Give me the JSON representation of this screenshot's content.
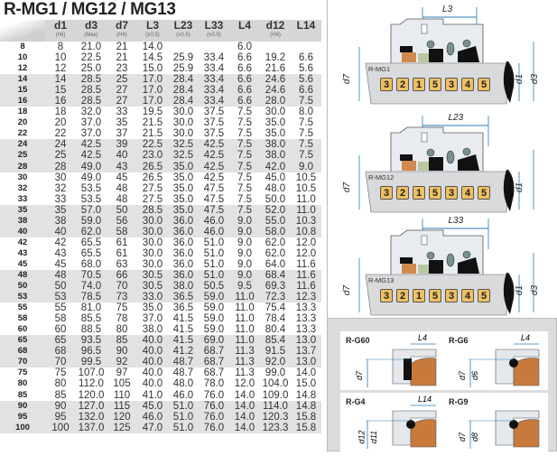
{
  "title": "R-MG1 / MG12 / MG13",
  "columns": [
    {
      "name": "d1",
      "sub": "(h6)"
    },
    {
      "name": "d3",
      "sub": "(Max)"
    },
    {
      "name": "d7",
      "sub": "(H8)"
    },
    {
      "name": "L3",
      "sub": "(±0.5)"
    },
    {
      "name": "L23",
      "sub": "(±0.5)"
    },
    {
      "name": "L33",
      "sub": "(±0.5)"
    },
    {
      "name": "L4",
      "sub": ""
    },
    {
      "name": "d12",
      "sub": "(H8)"
    },
    {
      "name": "L14",
      "sub": ""
    }
  ],
  "rows": [
    [
      "8",
      "8",
      "21.0",
      "21",
      "14.0",
      "",
      "",
      "6.0",
      "",
      ""
    ],
    [
      "10",
      "10",
      "22.5",
      "21",
      "14.5",
      "25.9",
      "33.4",
      "6.6",
      "19.2",
      "6.6"
    ],
    [
      "12",
      "12",
      "25.0",
      "23",
      "15.0",
      "25.9",
      "33.4",
      "6.6",
      "21.6",
      "5.6"
    ],
    [
      "14",
      "14",
      "28.5",
      "25",
      "17.0",
      "28.4",
      "33.4",
      "6.6",
      "24.6",
      "5.6"
    ],
    [
      "15",
      "15",
      "28.5",
      "27",
      "17.0",
      "28.4",
      "33.4",
      "6.6",
      "24.6",
      "6.6"
    ],
    [
      "16",
      "16",
      "28.5",
      "27",
      "17.0",
      "28.4",
      "33.4",
      "6.6",
      "28.0",
      "7.5"
    ],
    [
      "18",
      "18",
      "32.0",
      "33",
      "19.5",
      "30.0",
      "37.5",
      "7.5",
      "30.0",
      "8.0"
    ],
    [
      "20",
      "20",
      "37.0",
      "35",
      "21.5",
      "30.0",
      "37.5",
      "7.5",
      "35.0",
      "7.5"
    ],
    [
      "22",
      "22",
      "37.0",
      "37",
      "21.5",
      "30.0",
      "37.5",
      "7.5",
      "35.0",
      "7.5"
    ],
    [
      "24",
      "24",
      "42.5",
      "39",
      "22.5",
      "32.5",
      "42.5",
      "7.5",
      "38.0",
      "7.5"
    ],
    [
      "25",
      "25",
      "42.5",
      "40",
      "23.0",
      "32.5",
      "42.5",
      "7.5",
      "38.0",
      "7.5"
    ],
    [
      "28",
      "28",
      "49.0",
      "43",
      "26.5",
      "35.0",
      "42.5",
      "7.5",
      "42.0",
      "9.0"
    ],
    [
      "30",
      "30",
      "49.0",
      "45",
      "26.5",
      "35.0",
      "42.5",
      "7.5",
      "45.0",
      "10.5"
    ],
    [
      "32",
      "32",
      "53.5",
      "48",
      "27.5",
      "35.0",
      "47.5",
      "7.5",
      "48.0",
      "10.5"
    ],
    [
      "33",
      "33",
      "53.5",
      "48",
      "27.5",
      "35.0",
      "47.5",
      "7.5",
      "50.0",
      "11.0"
    ],
    [
      "35",
      "35",
      "57.0",
      "50",
      "28.5",
      "35.0",
      "47.5",
      "7.5",
      "52.0",
      "11.0"
    ],
    [
      "38",
      "38",
      "59.0",
      "56",
      "30.0",
      "36.0",
      "46.0",
      "9.0",
      "55.0",
      "10.3"
    ],
    [
      "40",
      "40",
      "62.0",
      "58",
      "30.0",
      "36.0",
      "46.0",
      "9.0",
      "58.0",
      "10.8"
    ],
    [
      "42",
      "42",
      "65.5",
      "61",
      "30.0",
      "36.0",
      "51.0",
      "9.0",
      "62.0",
      "12.0"
    ],
    [
      "43",
      "43",
      "65.5",
      "61",
      "30.0",
      "36.0",
      "51.0",
      "9.0",
      "62.0",
      "12.0"
    ],
    [
      "45",
      "45",
      "68.0",
      "63",
      "30.0",
      "36.0",
      "51.0",
      "9.0",
      "64.0",
      "11.6"
    ],
    [
      "48",
      "48",
      "70.5",
      "66",
      "30.5",
      "36.0",
      "51.0",
      "9.0",
      "68.4",
      "11.6"
    ],
    [
      "50",
      "50",
      "74.0",
      "70",
      "30.5",
      "38.0",
      "50.5",
      "9.5",
      "69.3",
      "11.6"
    ],
    [
      "53",
      "53",
      "78.5",
      "73",
      "33.0",
      "36.5",
      "59.0",
      "11.0",
      "72.3",
      "12.3"
    ],
    [
      "55",
      "55",
      "81.0",
      "75",
      "35.0",
      "36.5",
      "59.0",
      "11.0",
      "75.4",
      "13.3"
    ],
    [
      "58",
      "58",
      "85.5",
      "78",
      "37.0",
      "41.5",
      "59.0",
      "11.0",
      "78.4",
      "13.3"
    ],
    [
      "60",
      "60",
      "88.5",
      "80",
      "38.0",
      "41.5",
      "59.0",
      "11.0",
      "80.4",
      "13.3"
    ],
    [
      "65",
      "65",
      "93.5",
      "85",
      "40.0",
      "41.5",
      "69.0",
      "11.0",
      "85.4",
      "13.0"
    ],
    [
      "68",
      "68",
      "96.5",
      "90",
      "40.0",
      "41.2",
      "68.7",
      "11.3",
      "91.5",
      "13.7"
    ],
    [
      "70",
      "70",
      "99.5",
      "92",
      "40.0",
      "48.7",
      "68.7",
      "11.3",
      "92.0",
      "13.0"
    ],
    [
      "75",
      "75",
      "107.0",
      "97",
      "40.0",
      "48.7",
      "68.7",
      "11.3",
      "99.0",
      "14.0"
    ],
    [
      "80",
      "80",
      "112.0",
      "105",
      "40.0",
      "48.0",
      "78.0",
      "12.0",
      "104.0",
      "15.0"
    ],
    [
      "85",
      "85",
      "120.0",
      "110",
      "41.0",
      "46.0",
      "76.0",
      "14.0",
      "109.0",
      "14.8"
    ],
    [
      "90",
      "90",
      "127.0",
      "115",
      "45.0",
      "51.0",
      "76.0",
      "14.0",
      "114.0",
      "14.8"
    ],
    [
      "95",
      "95",
      "132.0",
      "120",
      "46.0",
      "51.0",
      "76.0",
      "14.0",
      "120.3",
      "15.8"
    ],
    [
      "100",
      "100",
      "137.0",
      "125",
      "47.0",
      "51.0",
      "76.0",
      "14.0",
      "123.3",
      "15.8"
    ]
  ],
  "drawings": [
    {
      "label": "R-MG1",
      "dim": "L3",
      "parts": [
        "3",
        "2",
        "1",
        "5",
        "3",
        "4",
        "5"
      ],
      "d_labels": [
        "d7",
        "d1",
        "d3"
      ]
    },
    {
      "label": "R-MG12",
      "dim": "L23",
      "parts": [
        "3",
        "2",
        "1",
        "5",
        "3",
        "4",
        "5"
      ],
      "d_labels": [
        "d7",
        "d1"
      ]
    },
    {
      "label": "R-MG13",
      "dim": "L33",
      "parts": [
        "3",
        "2",
        "1",
        "5",
        "3",
        "4",
        "5"
      ],
      "d_labels": [
        "d7",
        "d1",
        "d3"
      ]
    }
  ],
  "seats": [
    {
      "label": "R-G60",
      "dim": "L4",
      "d_labels": [
        "d7"
      ]
    },
    {
      "label": "R-G6",
      "dim": "L4",
      "d_labels": [
        "d7",
        "d6"
      ]
    },
    {
      "label": "R-G4",
      "dim": "L14",
      "d_labels": [
        "d12",
        "d11"
      ]
    },
    {
      "label": "R-G9",
      "dim": "",
      "d_labels": [
        "d7",
        "d8"
      ]
    }
  ],
  "colors": {
    "header_bg": "#d6d6d6",
    "stripe": "#e2e2e2",
    "dimension": "#2a7ab0",
    "seat": "#c87a3c",
    "badge": "#f0c060"
  }
}
